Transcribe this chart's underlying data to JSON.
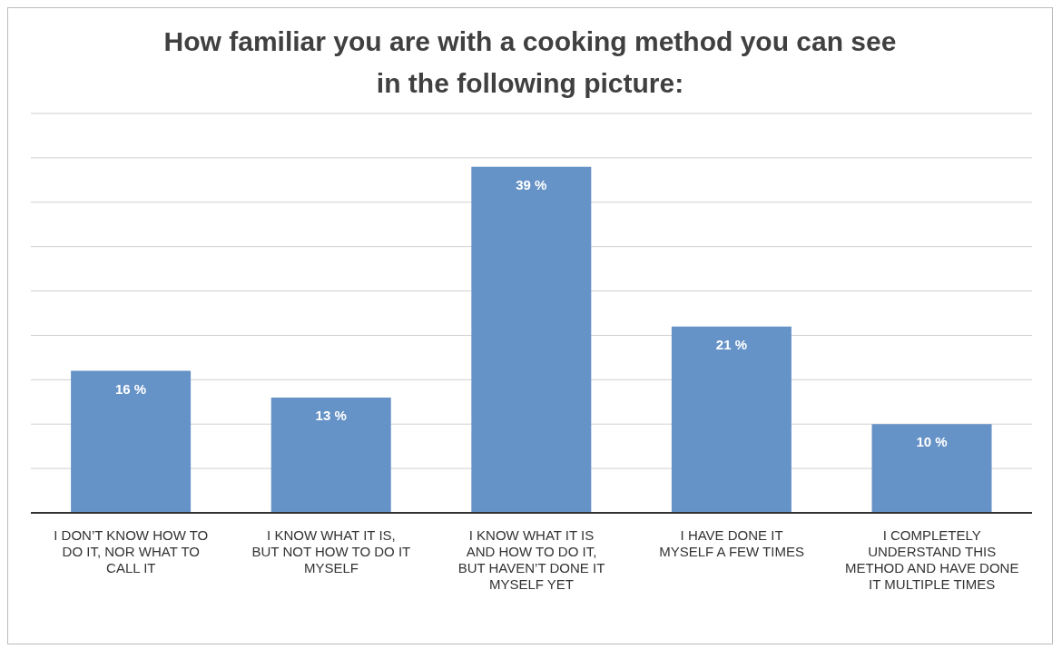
{
  "chart_data": {
    "type": "bar",
    "title": "How familiar you are with a cooking method you can see in the following picture:",
    "categories": [
      "I DON’T KNOW HOW TO DO IT, NOR WHAT TO CALL IT",
      "I KNOW WHAT IT IS, BUT NOT HOW TO DO IT MYSELF",
      "I KNOW WHAT IT IS AND HOW TO DO IT, BUT HAVEN’T DONE IT MYSELF YET",
      "I HAVE DONE IT MYSELF A FEW TIMES",
      "I COMPLETELY UNDERSTAND THIS METHOD AND HAVE DONE IT MULTIPLE TIMES"
    ],
    "values": [
      16,
      13,
      39,
      21,
      10
    ],
    "value_labels": [
      "16 %",
      "13 %",
      "39 %",
      "21 %",
      "10 %"
    ],
    "color": "#6592c7",
    "ylim": [
      0,
      45
    ],
    "yticks": [
      {
        "value": 0,
        "label": null
      },
      {
        "value": 5,
        "label": null
      },
      {
        "value": 10,
        "label": null
      },
      {
        "value": 15,
        "label": null
      },
      {
        "value": 20,
        "label": null
      },
      {
        "value": 25,
        "label": null
      },
      {
        "value": 30,
        "label": null
      },
      {
        "value": 35,
        "label": null
      },
      {
        "value": 40,
        "label": null
      },
      {
        "value": 45,
        "label": null
      }
    ],
    "grid": "y",
    "tick_labels": "x",
    "legend": false
  }
}
